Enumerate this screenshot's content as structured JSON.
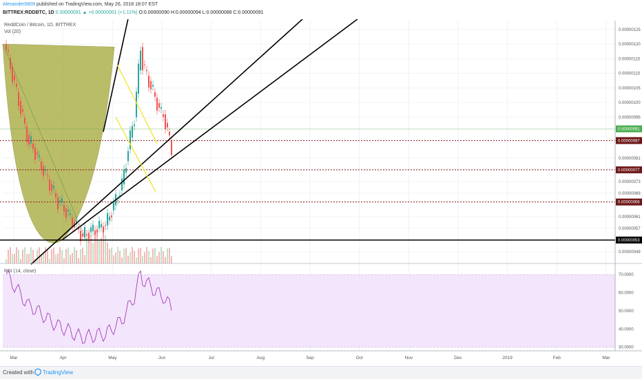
{
  "header": {
    "author": "Alexander0809",
    "published_text": "published on TradingView.com, May 26, 2018 18:07 EST",
    "symbol": "BITTREX:RDDBTC, 1D",
    "last": "0.00000091",
    "change": "+0.00000001 (+1.11%)",
    "ohlc": "O:0.00000090 H:0.00000094 L:0.00000088 C:0.00000091"
  },
  "chart_data": [
    {
      "type": "candlestick",
      "title": "ReddCoin / Bitcoin, 1D, BITTREX",
      "volume_label": "Vol (20)",
      "ylim": [
        4.5e-07,
        1.28e-06
      ],
      "y_ticks": [
        "0.00000125",
        "0.00000120",
        "0.00000115",
        "0.00000110",
        "0.00000105",
        "0.00000100",
        "0.00000095",
        "0.00000091",
        "0.00000087",
        "0.00000081",
        "0.00000077",
        "0.00000073",
        "0.00000069",
        "0.00000066",
        "0.00000061",
        "0.00000057",
        "0.00000053",
        "0.00000049"
      ],
      "x_ticks": [
        "Mar",
        "Apr",
        "May",
        "Jun",
        "Jul",
        "Aug",
        "Sep",
        "Oct",
        "Nov",
        "Dec",
        "2019",
        "Feb",
        "Mar"
      ],
      "price_labels": [
        {
          "value": "0.00000091",
          "color": "#4caf50"
        },
        {
          "value": "0.00000087",
          "color": "#6d1717"
        },
        {
          "value": "0.00000077",
          "color": "#6d1717"
        },
        {
          "value": "0.00000066",
          "color": "#6d1717"
        },
        {
          "value": "0.00000053",
          "color": "#000000"
        }
      ],
      "horizontal_levels": [
        {
          "value": 8.7e-07,
          "style": "dotted",
          "color": "#8b1a1a"
        },
        {
          "value": 7.7e-07,
          "style": "dotted",
          "color": "#8b1a1a"
        },
        {
          "value": 6.6e-07,
          "style": "dotted",
          "color": "#8b1a1a"
        },
        {
          "value": 5.3e-07,
          "style": "solid",
          "color": "#000000"
        }
      ],
      "colors": {
        "up": "#26a69a",
        "down": "#ef5350",
        "cup_fill": "#9ea227",
        "wedge": "#f2e63a",
        "trend": "#000000"
      }
    },
    {
      "type": "line",
      "title": "RSI (14, close)",
      "ylim": [
        28,
        75
      ],
      "y_ticks": [
        "70.0000",
        "60.0000",
        "50.0000",
        "40.0000",
        "30.0000"
      ],
      "band": [
        30,
        70
      ],
      "colors": {
        "line": "#9c27b0",
        "band": "#f3e5fc"
      }
    }
  ],
  "footer": {
    "created": "Created with",
    "brand": "TradingView"
  }
}
